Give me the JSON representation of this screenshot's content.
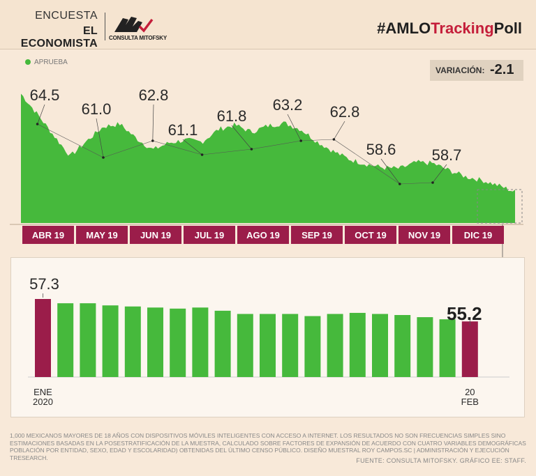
{
  "header": {
    "brand_line1": "ENCUESTA",
    "brand_line2": "EL ECONOMISTA",
    "logo_text": "CONSULTA MITOFSKY",
    "hashtag_prefix": "#AMLO",
    "hashtag_highlight": "Tracking",
    "hashtag_suffix": "Poll"
  },
  "legend": {
    "label": "APRUEBA",
    "color": "#46b93c"
  },
  "variation": {
    "label": "VARIACIÓN:",
    "value": "-2.1"
  },
  "colors": {
    "approve": "#46b93c",
    "highlight": "#9b1d4a",
    "background": "#f8e9d9"
  },
  "chart_data": [
    {
      "type": "area",
      "series": [
        {
          "name": "APRUEBA",
          "values": [
            66.5,
            64.2,
            61.8,
            59.5,
            61.2,
            62.8,
            63.1,
            61.5,
            60.2,
            61.0,
            61.3,
            61.1,
            62.5,
            63.0,
            62.2,
            62.9,
            63.2,
            62.5,
            61.1,
            60.0,
            59.1,
            58.6,
            58.2,
            58.1,
            58.8,
            58.7,
            57.9,
            57.2,
            56.8,
            56.2,
            55.5
          ]
        }
      ],
      "months": [
        "ABR 19",
        "MAY 19",
        "JUN 19",
        "JUL 19",
        "AGO 19",
        "SEP 19",
        "OCT 19",
        "NOV 19",
        "DIC 19"
      ],
      "annotations": [
        {
          "label": "64.5",
          "value": 64.5
        },
        {
          "label": "61.0",
          "value": 61.0
        },
        {
          "label": "62.8",
          "value": 62.8
        },
        {
          "label": "61.1",
          "value": 61.1
        },
        {
          "label": "61.8",
          "value": 61.8
        },
        {
          "label": "63.2",
          "value": 63.2
        },
        {
          "label": "62.8",
          "value": 62.8
        },
        {
          "label": "58.6",
          "value": 58.6
        },
        {
          "label": "58.7",
          "value": 58.7
        }
      ]
    },
    {
      "type": "bar",
      "values": [
        57.3,
        56.9,
        56.9,
        56.7,
        56.6,
        56.5,
        56.4,
        56.5,
        56.2,
        55.9,
        55.9,
        55.9,
        55.7,
        55.9,
        56.0,
        55.9,
        55.8,
        55.6,
        55.4,
        55.2
      ],
      "labels": {
        "first_value": "57.3",
        "last_value": "55.2",
        "start": "ENE\n2020",
        "end": "20\nFEB"
      }
    }
  ],
  "footnote": "1,000 MEXICANOS MAYORES DE 18 AÑOS CON DISPOSITIVOS MÓVILES INTELIGENTES CON ACCESO A INTERNET. LOS RESULTADOS NO SON FRECUENCIAS SIMPLES SINO ESTIMACIONES BASADAS EN LA POSESTRATIFICACIÓN DE LA MUESTRA, CALCULADO SOBRE FACTORES DE EXPANSIÓN DE ACUERDO CON CUATRO VARIABLES DEMOGRÁFICAS POBLACIÓN POR ENTIDAD, SEXO, EDAD Y ESCOLARIDAD) OBTENIDAS DEL ÚLTIMO CENSO PÚBLICO. DISEÑO MUESTRAL ROY CAMPOS.SC | ADMINISTRACIÓN Y EJECUCIÓN TRESEARCH.",
  "source": "FUENTE: CONSULTA MITOFSKY. GRÁFICO EE: STAFF."
}
